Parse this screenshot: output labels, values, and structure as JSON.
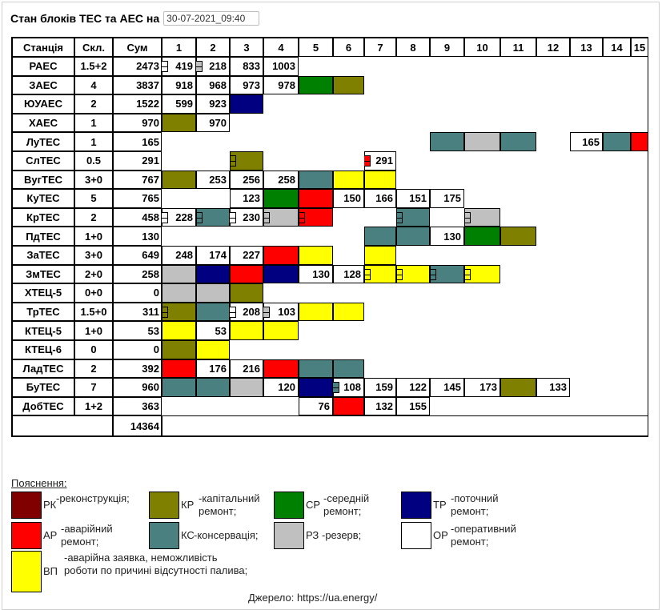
{
  "header": {
    "title": "Стан блоків ТЕС та АЕС на",
    "datetime": "30-07-2021_09:40"
  },
  "table": {
    "headers": {
      "station": "Станція",
      "composition": "Скл.",
      "sum": "Сум"
    },
    "unit_numbers": [
      "1",
      "2",
      "3",
      "4",
      "5",
      "6",
      "7",
      "8",
      "9",
      "10",
      "11",
      "12",
      "13",
      "14",
      "15"
    ],
    "rows": [
      {
        "station": "РАЕС",
        "comp": "1.5+2",
        "sum": "2473",
        "cells": [
          {
            "t": "419",
            "m": 1
          },
          {
            "t": "218",
            "m": 1,
            "mc": "r3"
          },
          {
            "t": "833"
          },
          {
            "t": "1003"
          }
        ]
      },
      {
        "station": "ЗАЕС",
        "comp": "4",
        "sum": "3837",
        "cells": [
          {
            "t": "918"
          },
          {
            "t": "968"
          },
          {
            "t": "973"
          },
          {
            "t": "978"
          },
          {
            "s": "sr"
          },
          {
            "s": "kr"
          }
        ]
      },
      {
        "station": "ЮУАЕС",
        "comp": "2",
        "sum": "1522",
        "cells": [
          {
            "t": "599"
          },
          {
            "t": "923"
          },
          {
            "s": "tr"
          }
        ]
      },
      {
        "station": "ХАЕС",
        "comp": "1",
        "sum": "970",
        "cells": [
          {
            "s": "kr"
          },
          {
            "t": "970"
          }
        ]
      },
      {
        "station": "ЛуТЕС",
        "comp": "1",
        "sum": "165",
        "cells": [
          null,
          null,
          null,
          null,
          null,
          null,
          null,
          null,
          {
            "s": "ks"
          },
          {
            "s": "r3"
          },
          {
            "s": "ks"
          },
          null,
          {
            "t": "165"
          },
          {
            "s": "ks"
          },
          {
            "s": "ar"
          }
        ]
      },
      {
        "station": "СлТЕС",
        "comp": "0.5",
        "sum": "291",
        "cells": [
          null,
          null,
          {
            "s": "kr",
            "m": 1
          },
          null,
          null,
          null,
          {
            "t": "291",
            "m": 1,
            "mc": "ar"
          }
        ]
      },
      {
        "station": "ВугТЕС",
        "comp": "3+0",
        "sum": "767",
        "cells": [
          {
            "s": "kr"
          },
          {
            "t": "253"
          },
          {
            "t": "256"
          },
          {
            "t": "258"
          },
          {
            "s": "ks"
          },
          {
            "s": "vp"
          },
          {
            "s": "vp"
          }
        ]
      },
      {
        "station": "КуТЕС",
        "comp": "5",
        "sum": "765",
        "cells": [
          null,
          null,
          {
            "t": "123"
          },
          {
            "s": "sr"
          },
          {
            "s": "ar"
          },
          {
            "t": "150"
          },
          {
            "t": "166"
          },
          {
            "t": "151"
          },
          {
            "t": "175"
          }
        ]
      },
      {
        "station": "КрТЕС",
        "comp": "2",
        "sum": "458",
        "cells": [
          {
            "t": "228",
            "m": 1
          },
          {
            "s": "ks",
            "m": 1
          },
          {
            "t": "230",
            "m": 1
          },
          {
            "s": "r3",
            "m": 1
          },
          {
            "s": "ar",
            "m": 1
          },
          null,
          null,
          {
            "s": "ks",
            "m": 1
          },
          null,
          {
            "s": "r3",
            "m": 1
          }
        ]
      },
      {
        "station": "ПдТЕС",
        "comp": "1+0",
        "sum": "130",
        "cells": [
          null,
          null,
          null,
          null,
          null,
          null,
          {
            "s": "ks"
          },
          {
            "s": "ks"
          },
          {
            "t": "130"
          },
          {
            "s": "sr"
          },
          {
            "s": "kr"
          }
        ]
      },
      {
        "station": "ЗаТЕС",
        "comp": "3+0",
        "sum": "649",
        "cells": [
          {
            "t": "248"
          },
          {
            "t": "174"
          },
          {
            "t": "227"
          },
          {
            "s": "ar"
          },
          {
            "s": "vp"
          },
          null,
          {
            "s": "vp"
          }
        ]
      },
      {
        "station": "ЗмТЕС",
        "comp": "2+0",
        "sum": "258",
        "cells": [
          {
            "s": "r3"
          },
          {
            "s": "tr"
          },
          {
            "s": "ar"
          },
          {
            "s": "tr"
          },
          {
            "t": "130"
          },
          {
            "t": "128"
          },
          {
            "s": "vp",
            "m": 1
          },
          {
            "s": "vp",
            "m": 1
          },
          {
            "s": "ks",
            "m": 1
          },
          {
            "s": "vp",
            "m": 1
          }
        ]
      },
      {
        "station": "ХТЕЦ-5",
        "comp": "0+0",
        "sum": "0",
        "cells": [
          {
            "s": "r3"
          },
          {
            "s": "r3"
          },
          {
            "s": "kr"
          }
        ]
      },
      {
        "station": "ТрТЕС",
        "comp": "1.5+0",
        "sum": "311",
        "cells": [
          {
            "s": "kr",
            "m": 1
          },
          {
            "s": "ks"
          },
          {
            "t": "208",
            "m": 1
          },
          {
            "t": "103",
            "m": 1,
            "mc": "r3"
          },
          {
            "s": "vp"
          },
          {
            "s": "vp"
          }
        ]
      },
      {
        "station": "КТЕЦ-5",
        "comp": "1+0",
        "sum": "53",
        "cells": [
          {
            "s": "vp"
          },
          {
            "t": "53"
          },
          {
            "s": "vp"
          },
          {
            "s": "vp"
          }
        ]
      },
      {
        "station": "КТЕЦ-6",
        "comp": "0",
        "sum": "0",
        "cells": [
          {
            "s": "kr"
          },
          {
            "s": "vp"
          }
        ]
      },
      {
        "station": "ЛадТЕС",
        "comp": "2",
        "sum": "392",
        "cells": [
          {
            "s": "ar"
          },
          {
            "t": "176"
          },
          {
            "t": "216"
          },
          {
            "s": "ar"
          },
          {
            "s": "ks"
          },
          {
            "s": "ks"
          }
        ]
      },
      {
        "station": "БуТЕС",
        "comp": "7",
        "sum": "960",
        "cells": [
          {
            "s": "ks"
          },
          {
            "s": "ks"
          },
          {
            "s": "r3"
          },
          {
            "t": "120"
          },
          {
            "s": "tr"
          },
          {
            "t": "108",
            "m": 1,
            "mc": "ks"
          },
          {
            "t": "159"
          },
          {
            "t": "122"
          },
          {
            "t": "145"
          },
          {
            "t": "173"
          },
          {
            "s": "kr"
          },
          {
            "t": "133"
          }
        ]
      },
      {
        "station": "ДобТЕС",
        "comp": "1+2",
        "sum": "363",
        "cells": [
          null,
          null,
          null,
          null,
          {
            "t": "76"
          },
          {
            "s": "ar"
          },
          {
            "t": "132"
          },
          {
            "t": "155"
          }
        ]
      }
    ],
    "total": "14364"
  },
  "colors": {
    "rk": "#800000",
    "kr": "#808000",
    "sr": "#008000",
    "tr": "#000080",
    "ar": "#ff0000",
    "ks": "#4a8080",
    "r3": "#c0c0c0",
    "or": "#ffffff",
    "vp": "#ffff00"
  },
  "legend": {
    "title": "Пояснення:",
    "items": [
      {
        "code": "rk",
        "abbr": "РК",
        "desc": "-реконструкція;"
      },
      {
        "code": "kr",
        "abbr": "КР",
        "desc": "-капітальний ремонт;"
      },
      {
        "code": "sr",
        "abbr": "СР",
        "desc": "-середній ремонт;"
      },
      {
        "code": "tr",
        "abbr": "ТР",
        "desc": "-поточний ремонт;"
      },
      {
        "code": "ar",
        "abbr": "АР",
        "desc": "-аварійний ремонт;"
      },
      {
        "code": "ks",
        "abbr": "КС",
        "desc": "-консервація;"
      },
      {
        "code": "r3",
        "abbr": "РЗ",
        "desc": "-резерв;"
      },
      {
        "code": "or",
        "abbr": "ОР",
        "desc": "-оперативний ремонт;"
      },
      {
        "code": "vp",
        "abbr": "ВП",
        "desc": "-аварійна заявка, неможливість роботи по причині відсутності палива;"
      }
    ]
  },
  "footer": "Джерело: https://ua.energy/"
}
